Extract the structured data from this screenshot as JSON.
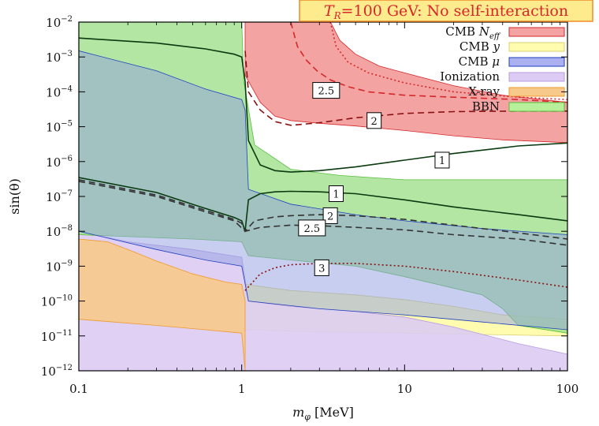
{
  "chart_data": {
    "type": "area",
    "title": "T_R=100 GeV: No self-interaction",
    "title_parts": {
      "symbol": "T",
      "subscript": "R",
      "rest": "=100 GeV: No self-interaction"
    },
    "xlabel": "m_φ [MeV]",
    "xlabel_parts": {
      "symbol": "m",
      "subscript": "φ",
      "rest": " [MeV]"
    },
    "ylabel": "sin(θ)",
    "xscale": "log",
    "yscale": "log",
    "xlim": [
      0.1,
      100
    ],
    "ylim": [
      1e-12,
      0.01
    ],
    "x_ticks": [
      {
        "value": 0.1,
        "label": "0.1"
      },
      {
        "value": 1,
        "label": "1"
      },
      {
        "value": 10,
        "label": "10"
      },
      {
        "value": 100,
        "label": "100"
      }
    ],
    "y_ticks": [
      {
        "exp": -2,
        "base": "10",
        "sup": "−2"
      },
      {
        "exp": -3,
        "base": "10",
        "sup": "−3"
      },
      {
        "exp": -4,
        "base": "10",
        "sup": "−4"
      },
      {
        "exp": -5,
        "base": "10",
        "sup": "−5"
      },
      {
        "exp": -6,
        "base": "10",
        "sup": "−6"
      },
      {
        "exp": -7,
        "base": "10",
        "sup": "−7"
      },
      {
        "exp": -8,
        "base": "10",
        "sup": "−8"
      },
      {
        "exp": -9,
        "base": "10",
        "sup": "−9"
      },
      {
        "exp": -10,
        "base": "10",
        "sup": "−10"
      },
      {
        "exp": -11,
        "base": "10",
        "sup": "−11"
      },
      {
        "exp": -12,
        "base": "10",
        "sup": "−12"
      }
    ],
    "legend": {
      "position": "top-right",
      "entries": [
        {
          "key": "cmb-neff",
          "label": "CMB N_eff",
          "parts": {
            "main": "CMB ",
            "symbol": "N",
            "subscript": "eff"
          },
          "fill": "#f4a3a3",
          "stroke": "#d62728"
        },
        {
          "key": "cmb-y",
          "label": "CMB y",
          "parts": {
            "main": "CMB ",
            "symbol": "y",
            "subscript": ""
          },
          "fill": "#fffcb0",
          "stroke": "#d8d070"
        },
        {
          "key": "cmb-mu",
          "label": "CMB μ",
          "parts": {
            "main": "CMB ",
            "symbol": "μ",
            "subscript": ""
          },
          "fill": "#aab0f0",
          "stroke": "#1f3fbf"
        },
        {
          "key": "ionization",
          "label": "Ionization",
          "parts": {
            "main": "Ionization",
            "symbol": "",
            "subscript": ""
          },
          "fill": "#dccbf3",
          "stroke": "#b89be0"
        },
        {
          "key": "xray",
          "label": "X-ray",
          "parts": {
            "main": "X-ray",
            "symbol": "",
            "subscript": ""
          },
          "fill": "#f7c98b",
          "stroke": "#ef9a2a"
        },
        {
          "key": "bbn",
          "label": "BBN",
          "parts": {
            "main": "BBN",
            "symbol": "",
            "subscript": ""
          },
          "fill": "#b8ef9a",
          "stroke": "#56c03a"
        }
      ]
    },
    "regions": [
      {
        "key": "cmb-neff",
        "fill": "#f4a3a3",
        "opacity": 1.0,
        "upper": [
          [
            1.05,
            0.01
          ],
          [
            3.5,
            0.01
          ],
          [
            3.6,
            0.008
          ],
          [
            4.0,
            0.003
          ],
          [
            5.0,
            0.0012
          ],
          [
            7.0,
            0.00055
          ],
          [
            10,
            0.00035
          ],
          [
            20,
            0.00015
          ],
          [
            40,
            8e-05
          ],
          [
            100,
            5e-05
          ]
        ],
        "lower": [
          [
            1.05,
            0.0003
          ],
          [
            1.3,
            5e-05
          ],
          [
            1.6,
            2e-05
          ],
          [
            2.0,
            1.5e-05
          ],
          [
            3,
            1.25e-05
          ],
          [
            5,
            1.05e-05
          ],
          [
            10,
            7.8e-06
          ],
          [
            20,
            5.5e-06
          ],
          [
            40,
            4.2e-06
          ],
          [
            100,
            3.5e-06
          ]
        ]
      },
      {
        "key": "cmb-y",
        "fill": "#fffcb0",
        "opacity": 1.0,
        "upper": [
          [
            1.05,
            3e-10
          ],
          [
            2,
            2e-10
          ],
          [
            5,
            1.5e-10
          ],
          [
            10,
            1.1e-10
          ],
          [
            20,
            7e-11
          ],
          [
            40,
            4e-11
          ],
          [
            100,
            3e-11
          ]
        ],
        "lower": [
          [
            1.05,
            1.5e-11
          ],
          [
            3,
            1.3e-11
          ],
          [
            10,
            1.2e-11
          ],
          [
            30,
            1.1e-11
          ],
          [
            100,
            1e-11
          ]
        ]
      },
      {
        "key": "ionization",
        "fill": "#dccbf3",
        "opacity": 0.9,
        "upper": [
          [
            0.1,
            1e-08
          ],
          [
            0.2,
            5e-09
          ],
          [
            0.5,
            3e-09
          ],
          [
            1.0,
            1.8e-09
          ],
          [
            1.1,
            1e-10
          ],
          [
            2,
            7e-11
          ],
          [
            5,
            5e-11
          ],
          [
            10,
            3.5e-11
          ],
          [
            20,
            1.8e-11
          ],
          [
            50,
            6e-12
          ],
          [
            100,
            3e-12
          ]
        ],
        "lower": [
          [
            0.1,
            1e-12
          ],
          [
            100,
            1e-12
          ]
        ]
      },
      {
        "key": "xray",
        "fill": "#f7c98b",
        "opacity": 0.9,
        "upper": [
          [
            0.1,
            6e-09
          ],
          [
            0.15,
            5e-09
          ],
          [
            0.2,
            3e-09
          ],
          [
            0.3,
            1.4e-09
          ],
          [
            0.5,
            6e-10
          ],
          [
            0.8,
            3.5e-10
          ],
          [
            1.0,
            3e-10
          ],
          [
            1.05,
            1e-10
          ]
        ],
        "lower": [
          [
            0.1,
            3e-11
          ],
          [
            0.3,
            2e-11
          ],
          [
            0.6,
            1.5e-11
          ],
          [
            1.0,
            1.2e-11
          ],
          [
            1.05,
            1e-12
          ]
        ]
      },
      {
        "key": "bbn",
        "fill": "#9fe08b",
        "opacity": 0.8,
        "upper": [
          [
            0.1,
            0.01
          ],
          [
            1.0,
            0.01
          ],
          [
            1.03,
            0.0002
          ],
          [
            1.2,
            3e-06
          ],
          [
            2.0,
            6e-07
          ],
          [
            4.0,
            4e-07
          ],
          [
            10,
            3e-07
          ],
          [
            100,
            3e-07
          ]
        ],
        "lower": [
          [
            0.1,
            8e-09
          ],
          [
            0.5,
            6e-09
          ],
          [
            1.0,
            5e-09
          ],
          [
            1.1,
            2e-09
          ],
          [
            2,
            1.5e-09
          ],
          [
            5,
            1e-09
          ],
          [
            10,
            5e-10
          ],
          [
            30,
            1.5e-10
          ],
          [
            40,
            6e-11
          ],
          [
            50,
            2e-11
          ],
          [
            100,
            1.2e-11
          ]
        ]
      },
      {
        "key": "cmb-mu",
        "fill": "#8f9de0",
        "opacity": 0.5,
        "upper": [
          [
            0.1,
            0.0015
          ],
          [
            0.3,
            0.0004
          ],
          [
            0.6,
            0.00012
          ],
          [
            1.0,
            6e-05
          ],
          [
            1.05,
            3e-05
          ],
          [
            1.1,
            1.6e-07
          ],
          [
            2,
            6e-08
          ],
          [
            5,
            3e-08
          ],
          [
            10,
            2e-08
          ],
          [
            30,
            1.2e-08
          ],
          [
            100,
            8e-09
          ]
        ],
        "lower": [
          [
            0.1,
            1e-08
          ],
          [
            0.3,
            3e-09
          ],
          [
            0.6,
            1.5e-09
          ],
          [
            1.0,
            1e-09
          ],
          [
            1.1,
            1e-10
          ],
          [
            3,
            6e-11
          ],
          [
            10,
            4e-11
          ],
          [
            30,
            2.5e-11
          ],
          [
            100,
            1.5e-11
          ]
        ]
      }
    ],
    "contours": [
      {
        "value": "1",
        "style": "solid",
        "color": "#0a3a10",
        "points": [
          [
            0.1,
            0.0035
          ],
          [
            0.3,
            0.0025
          ],
          [
            0.6,
            0.0017
          ],
          [
            0.9,
            0.0012
          ],
          [
            1.0,
            0.001
          ],
          [
            1.05,
            0.0002
          ],
          [
            1.1,
            4e-06
          ],
          [
            1.3,
            8e-07
          ],
          [
            1.6,
            5.5e-07
          ],
          [
            2.0,
            5e-07
          ],
          [
            3,
            5.5e-07
          ],
          [
            5,
            7e-07
          ],
          [
            10,
            1.1e-06
          ],
          [
            20,
            1.7e-06
          ],
          [
            50,
            2.8e-06
          ],
          [
            100,
            3.4e-06
          ]
        ]
      },
      {
        "value": "2",
        "style": "dashed",
        "color": "#8a1010",
        "points": [
          [
            1.05,
            0.0015
          ],
          [
            1.1,
            0.0001
          ],
          [
            1.3,
            3e-05
          ],
          [
            1.6,
            1.4e-05
          ],
          [
            2.0,
            1.1e-05
          ],
          [
            3,
            1.3e-05
          ],
          [
            5,
            1.8e-05
          ],
          [
            10,
            2.4e-05
          ],
          [
            20,
            2.7e-05
          ],
          [
            50,
            2.8e-05
          ],
          [
            100,
            2.8e-05
          ]
        ]
      },
      {
        "value": "2.5",
        "style": "dashed",
        "color": "#d62728",
        "points": [
          [
            2.0,
            0.01
          ],
          [
            2.2,
            0.002
          ],
          [
            2.5,
            0.0008
          ],
          [
            2.9,
            0.0004
          ],
          [
            3.5,
            0.00022
          ],
          [
            4.5,
            0.00014
          ],
          [
            6,
            0.0001
          ],
          [
            10,
            8e-05
          ],
          [
            20,
            7e-05
          ],
          [
            50,
            6e-05
          ],
          [
            100,
            5e-05
          ]
        ]
      },
      {
        "value": "",
        "style": "dotted",
        "color": "#d62728",
        "points": [
          [
            3.5,
            0.01
          ],
          [
            3.8,
            0.002
          ],
          [
            4.5,
            0.0007
          ],
          [
            6,
            0.00035
          ],
          [
            10,
            0.00018
          ],
          [
            20,
            0.0001
          ],
          [
            50,
            7e-05
          ],
          [
            100,
            6e-05
          ]
        ]
      },
      {
        "value": "1",
        "style": "solid",
        "color": "#0a3a10",
        "points": [
          [
            0.1,
            3.5e-07
          ],
          [
            0.3,
            1.3e-07
          ],
          [
            0.6,
            4.5e-08
          ],
          [
            0.9,
            2.5e-08
          ],
          [
            1.0,
            2e-08
          ],
          [
            1.05,
            1e-08
          ],
          [
            1.1,
            8e-08
          ],
          [
            1.3,
            1.2e-07
          ],
          [
            1.6,
            1.35e-07
          ],
          [
            2.0,
            1.4e-07
          ],
          [
            3,
            1.35e-07
          ],
          [
            5,
            1.2e-07
          ],
          [
            10,
            8e-08
          ],
          [
            20,
            5e-08
          ],
          [
            50,
            3e-08
          ],
          [
            100,
            2e-08
          ]
        ]
      },
      {
        "value": "2",
        "style": "dashed",
        "color": "#333333",
        "points": [
          [
            0.1,
            3e-07
          ],
          [
            0.3,
            1.1e-07
          ],
          [
            0.6,
            4e-08
          ],
          [
            0.9,
            2.2e-08
          ],
          [
            1.0,
            1.7e-08
          ],
          [
            1.05,
            1e-08
          ],
          [
            1.2,
            2e-08
          ],
          [
            1.6,
            2.6e-08
          ],
          [
            2.0,
            2.8e-08
          ],
          [
            3,
            3e-08
          ],
          [
            5,
            2.8e-08
          ],
          [
            10,
            2.2e-08
          ],
          [
            20,
            1.5e-08
          ],
          [
            50,
            9e-09
          ],
          [
            100,
            6e-09
          ]
        ]
      },
      {
        "value": "2.5",
        "style": "dashed",
        "color": "#333333",
        "points": [
          [
            0.1,
            2.7e-07
          ],
          [
            0.3,
            1e-07
          ],
          [
            0.6,
            3.6e-08
          ],
          [
            0.9,
            2e-08
          ],
          [
            1.05,
            1e-08
          ],
          [
            1.3,
            1.3e-08
          ],
          [
            2.0,
            1.5e-08
          ],
          [
            3,
            1.45e-08
          ],
          [
            5,
            1.3e-08
          ],
          [
            10,
            1.1e-08
          ],
          [
            20,
            8e-09
          ],
          [
            50,
            6e-09
          ],
          [
            100,
            4e-09
          ]
        ]
      },
      {
        "value": "3",
        "style": "dotted",
        "color": "#8a1010",
        "points": [
          [
            1.05,
            2e-10
          ],
          [
            1.3,
            6e-10
          ],
          [
            1.6,
            9e-10
          ],
          [
            2.0,
            1.1e-09
          ],
          [
            3,
            1.2e-09
          ],
          [
            5,
            1.2e-09
          ],
          [
            10,
            1e-09
          ],
          [
            20,
            7e-10
          ],
          [
            50,
            4e-10
          ],
          [
            100,
            2.5e-10
          ]
        ]
      }
    ],
    "contour_labels": [
      {
        "text": "2.5",
        "x": 3.3,
        "y": 0.00011
      },
      {
        "text": "2",
        "x": 6.5,
        "y": 1.5e-05
      },
      {
        "text": "1",
        "x": 17,
        "y": 1.1e-06
      },
      {
        "text": "1",
        "x": 3.8,
        "y": 1.2e-07
      },
      {
        "text": "2",
        "x": 3.5,
        "y": 2.8e-08
      },
      {
        "text": "2.5",
        "x": 2.7,
        "y": 1.25e-08
      },
      {
        "text": "3",
        "x": 3.1,
        "y": 9e-10
      }
    ]
  }
}
